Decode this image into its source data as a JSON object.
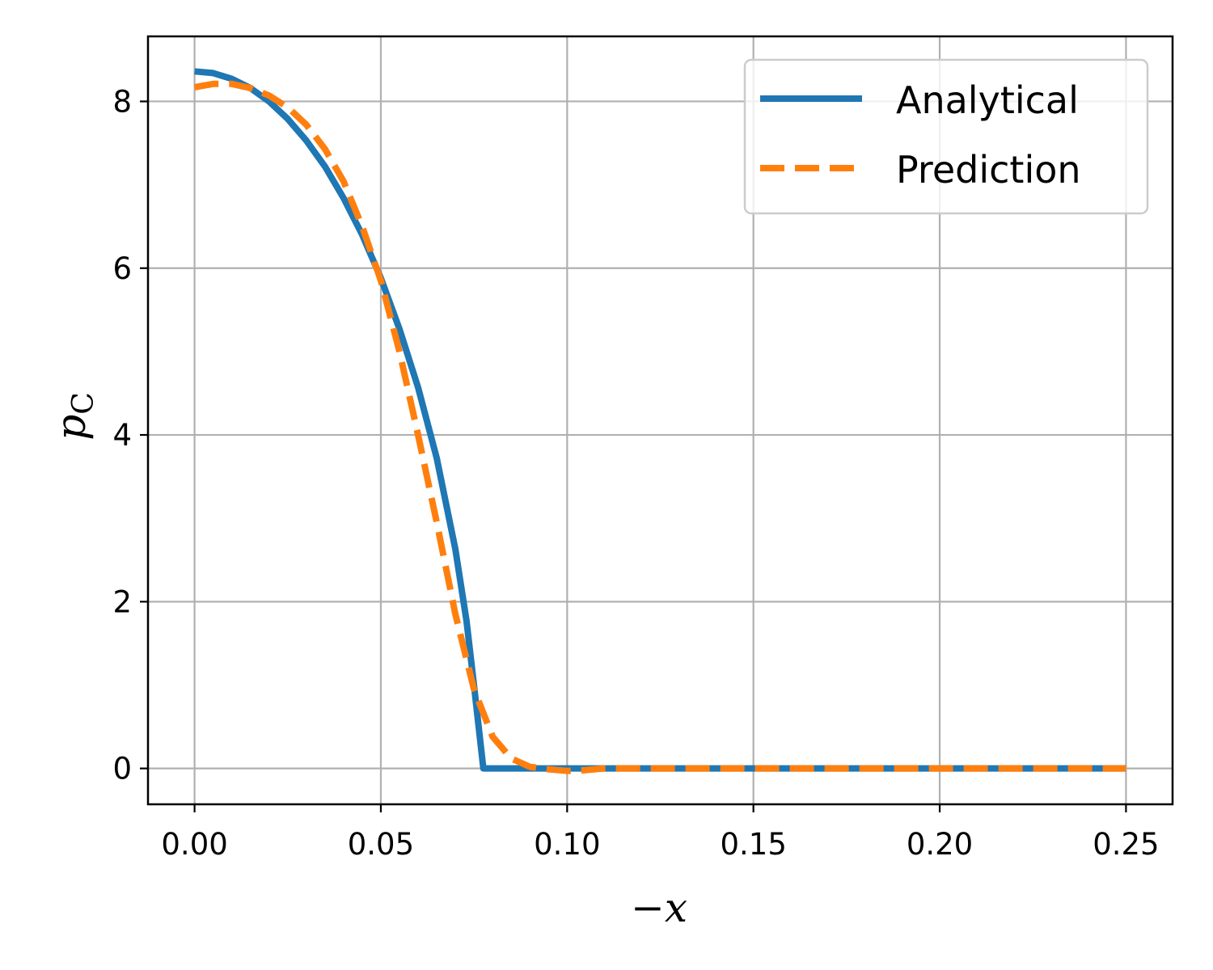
{
  "chart_data": {
    "type": "line",
    "xlabel": "−x",
    "ylabel": "p",
    "ylabel_subscript": "C",
    "xlim": [
      -0.0125,
      0.2625
    ],
    "ylim": [
      -0.43,
      8.78
    ],
    "xticks": [
      0.0,
      0.05,
      0.1,
      0.15,
      0.2,
      0.25
    ],
    "xtick_labels": [
      "0.00",
      "0.05",
      "0.10",
      "0.15",
      "0.20",
      "0.25"
    ],
    "yticks": [
      0,
      2,
      4,
      6,
      8
    ],
    "ytick_labels": [
      "0",
      "2",
      "4",
      "6",
      "8"
    ],
    "grid": true,
    "legend_position": "top-right",
    "series": [
      {
        "name": "Analytical",
        "color": "#1f77b4",
        "style": "solid",
        "x": [
          0.0,
          0.005,
          0.01,
          0.015,
          0.02,
          0.025,
          0.03,
          0.035,
          0.04,
          0.045,
          0.05,
          0.055,
          0.06,
          0.065,
          0.07,
          0.073,
          0.075,
          0.0775,
          0.08,
          0.1,
          0.15,
          0.2,
          0.25
        ],
        "y": [
          8.36,
          8.34,
          8.27,
          8.16,
          8.0,
          7.79,
          7.53,
          7.22,
          6.84,
          6.4,
          5.88,
          5.27,
          4.57,
          3.72,
          2.63,
          1.77,
          1.0,
          0.0,
          0.0,
          0.0,
          0.0,
          0.0,
          0.0
        ]
      },
      {
        "name": "Prediction",
        "color": "#ff7f0e",
        "style": "dashed",
        "x": [
          0.0,
          0.005,
          0.01,
          0.015,
          0.02,
          0.025,
          0.03,
          0.035,
          0.04,
          0.045,
          0.05,
          0.055,
          0.06,
          0.065,
          0.07,
          0.075,
          0.08,
          0.085,
          0.09,
          0.095,
          0.1,
          0.105,
          0.11,
          0.15,
          0.2,
          0.25
        ],
        "y": [
          8.17,
          8.21,
          8.21,
          8.16,
          8.07,
          7.93,
          7.72,
          7.43,
          7.04,
          6.5,
          5.85,
          5.0,
          4.0,
          2.95,
          1.85,
          0.95,
          0.38,
          0.12,
          0.02,
          -0.01,
          -0.03,
          -0.02,
          0.0,
          0.0,
          0.0,
          0.0
        ]
      }
    ]
  }
}
